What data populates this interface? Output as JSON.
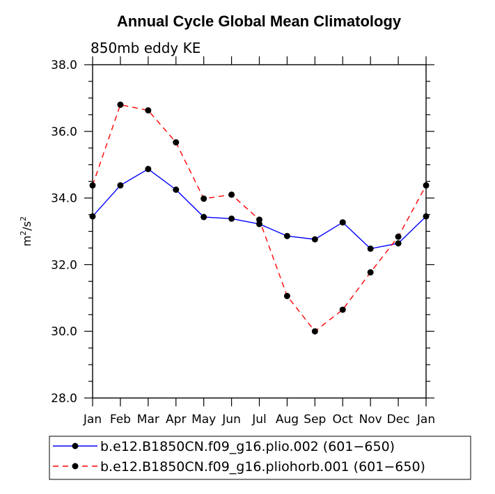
{
  "chart_data": {
    "type": "line",
    "title": "Annual Cycle Global Mean Climatology",
    "subtitle": "850mb eddy KE",
    "ylabel_base": "m",
    "ylabel_exp1": "2",
    "ylabel_mid": "/s",
    "ylabel_exp2": "2",
    "ylim": [
      28.0,
      38.0
    ],
    "yticks": [
      "28.0",
      "30.0",
      "32.0",
      "34.0",
      "36.0",
      "38.0"
    ],
    "categories": [
      "Jan",
      "Feb",
      "Mar",
      "Apr",
      "May",
      "Jun",
      "Jul",
      "Aug",
      "Sep",
      "Oct",
      "Nov",
      "Dec",
      "Jan"
    ],
    "legend_position": "bottom",
    "series": [
      {
        "name": "b.e12.B1850CN.f09_g16.plio.002 (601−650)",
        "color": "#0000ff",
        "dash": "solid",
        "values": [
          33.45,
          34.38,
          34.87,
          34.25,
          33.43,
          33.38,
          33.22,
          32.86,
          32.76,
          33.27,
          32.48,
          32.64,
          33.45
        ]
      },
      {
        "name": "b.e12.B1850CN.f09_g16.pliohorb.001 (601−650)",
        "color": "#ff0000",
        "dash": "dashed",
        "values": [
          34.38,
          36.8,
          36.63,
          35.67,
          33.98,
          34.1,
          33.35,
          31.06,
          30.0,
          30.65,
          31.77,
          32.84,
          34.38
        ]
      }
    ]
  }
}
